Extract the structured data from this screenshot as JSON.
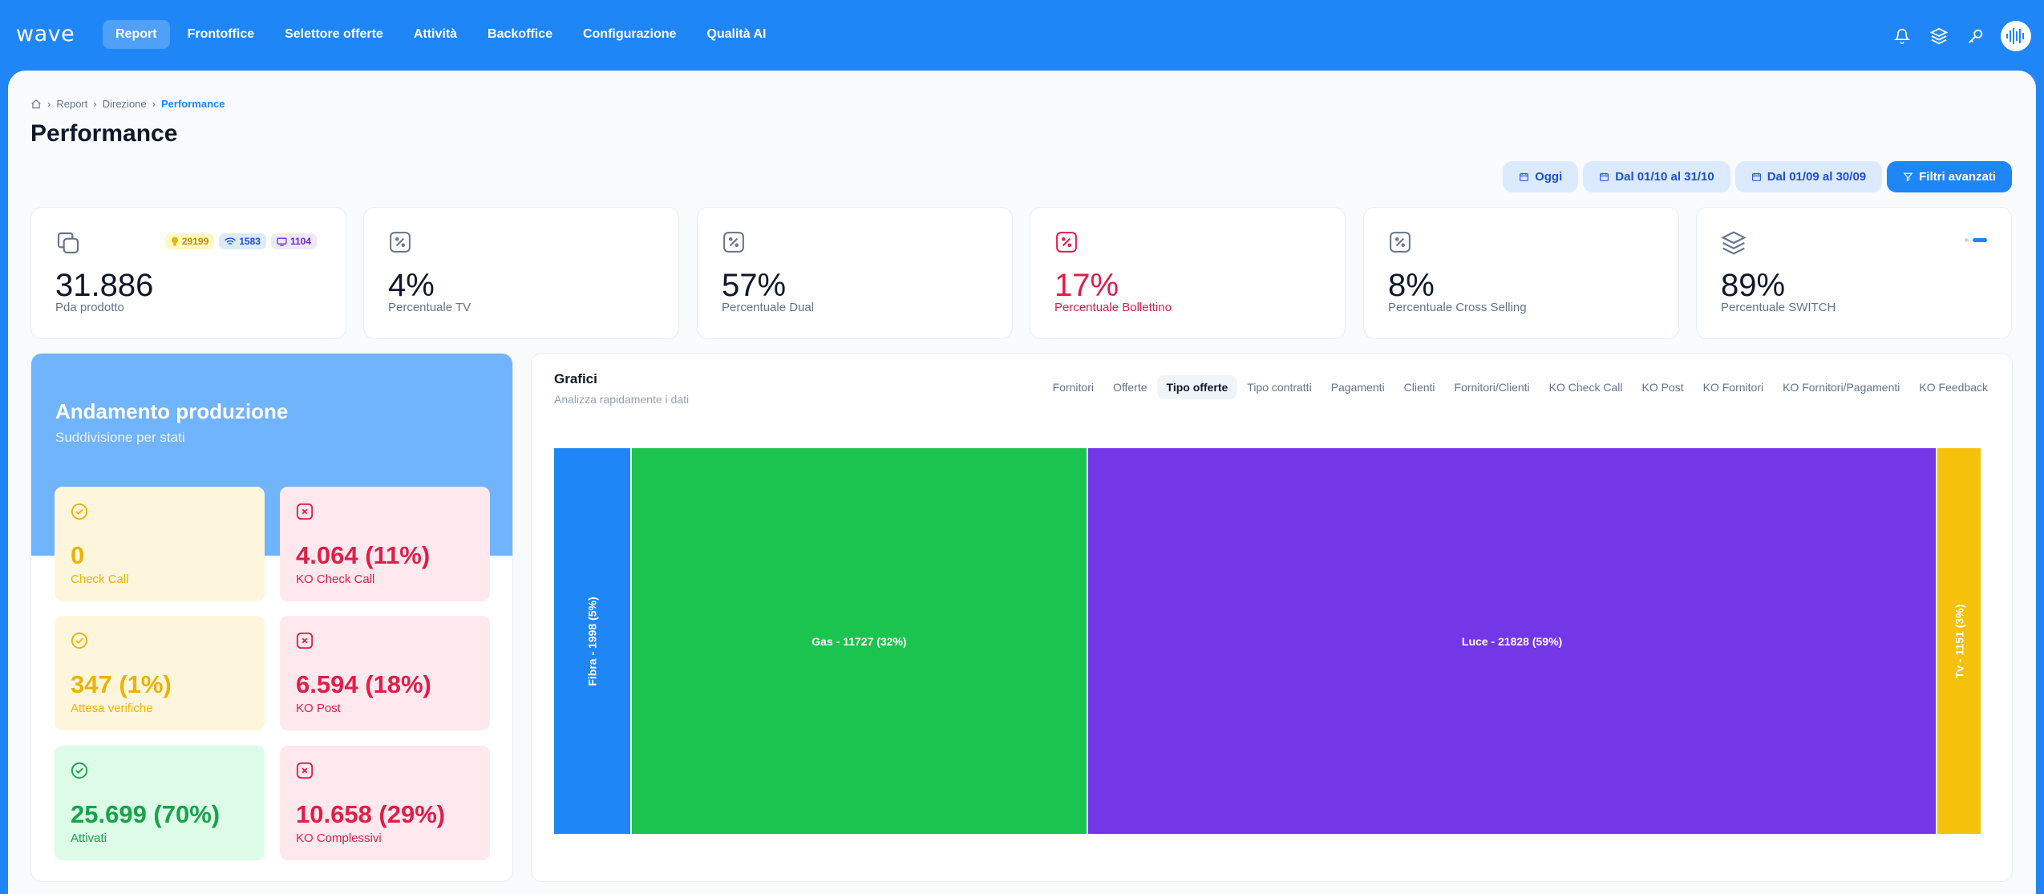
{
  "app": {
    "logo": "wave"
  },
  "nav": {
    "items": [
      "Report",
      "Frontoffice",
      "Selettore offerte",
      "Attività",
      "Backoffice",
      "Configurazione",
      "Qualità AI"
    ],
    "active": "Report"
  },
  "breadcrumb": {
    "items": [
      "Report",
      "Direzione",
      "Performance"
    ]
  },
  "page": {
    "title": "Performance"
  },
  "filters": {
    "oggi": "Oggi",
    "range1": "Dal 01/10 al 31/10",
    "range2": "Dal 01/09 al 30/09",
    "advanced": "Filtri avanzati"
  },
  "stats": [
    {
      "value": "31.886",
      "label": "Pda prodotto",
      "icon": "copy-icon",
      "badges": [
        {
          "value": "29199",
          "icon": "bulb-icon",
          "color": "#ca8a04"
        },
        {
          "value": "1583",
          "icon": "wifi-icon",
          "color": "#1d4ed8"
        },
        {
          "value": "1104",
          "icon": "tv-icon",
          "color": "#6d28d9"
        }
      ]
    },
    {
      "value": "4%",
      "label": "Percentuale TV",
      "icon": "percent-icon"
    },
    {
      "value": "57%",
      "label": "Percentuale Dual",
      "icon": "percent-icon"
    },
    {
      "value": "17%",
      "label": "Percentuale Bollettino",
      "icon": "percent-icon",
      "color": "#e11d48"
    },
    {
      "value": "8%",
      "label": "Percentuale Cross Selling",
      "icon": "percent-icon"
    },
    {
      "value": "89%",
      "label": "Percentuale SWITCH",
      "icon": "layers-icon"
    }
  ],
  "production": {
    "title": "Andamento produzione",
    "subtitle": "Suddivisione per stati",
    "cards": [
      {
        "value": "0",
        "label": "Check Call",
        "status": "ok"
      },
      {
        "value": "4.064 (11%)",
        "label": "KO Check Call",
        "status": "ko"
      },
      {
        "value": "347 (1%)",
        "label": "Attesa verifiche",
        "status": "ok"
      },
      {
        "value": "6.594 (18%)",
        "label": "KO Post",
        "status": "ko"
      },
      {
        "value": "25.699 (70%)",
        "label": "Attivati",
        "status": "done"
      },
      {
        "value": "10.658 (29%)",
        "label": "KO Complessivi",
        "status": "ko"
      }
    ]
  },
  "graphs": {
    "title": "Grafici",
    "subtitle": "Analizza rapidamente i dati",
    "tabs": [
      "Fornitori",
      "Offerte",
      "Tipo offerte",
      "Tipo contratti",
      "Pagamenti",
      "Clienti",
      "Fornitori/Clienti",
      "KO Check Call",
      "KO Post",
      "KO Fornitori",
      "KO Fornitori/Pagamenti",
      "KO Feedback"
    ],
    "active_tab": "Tipo offerte"
  },
  "chart_data": {
    "type": "treemap",
    "series": [
      {
        "name": "Fibra",
        "value": 1998,
        "pct": 5,
        "label": "Fibra - 1998 (5%)",
        "color": "#1f86f7"
      },
      {
        "name": "Gas",
        "value": 11727,
        "pct": 32,
        "label": "Gas - 11727 (32%)",
        "color": "#1bc44f"
      },
      {
        "name": "Luce",
        "value": 21828,
        "pct": 59,
        "label": "Luce - 21828 (59%)",
        "color": "#7437e8"
      },
      {
        "name": "Tv",
        "value": 1151,
        "pct": 3,
        "label": "Tv - 1151 (3%)",
        "color": "#f5c10a"
      }
    ]
  },
  "colors": {
    "brand": "#1f86f7",
    "danger": "#e11d48",
    "warning": "#eab308",
    "success": "#16a34a"
  }
}
